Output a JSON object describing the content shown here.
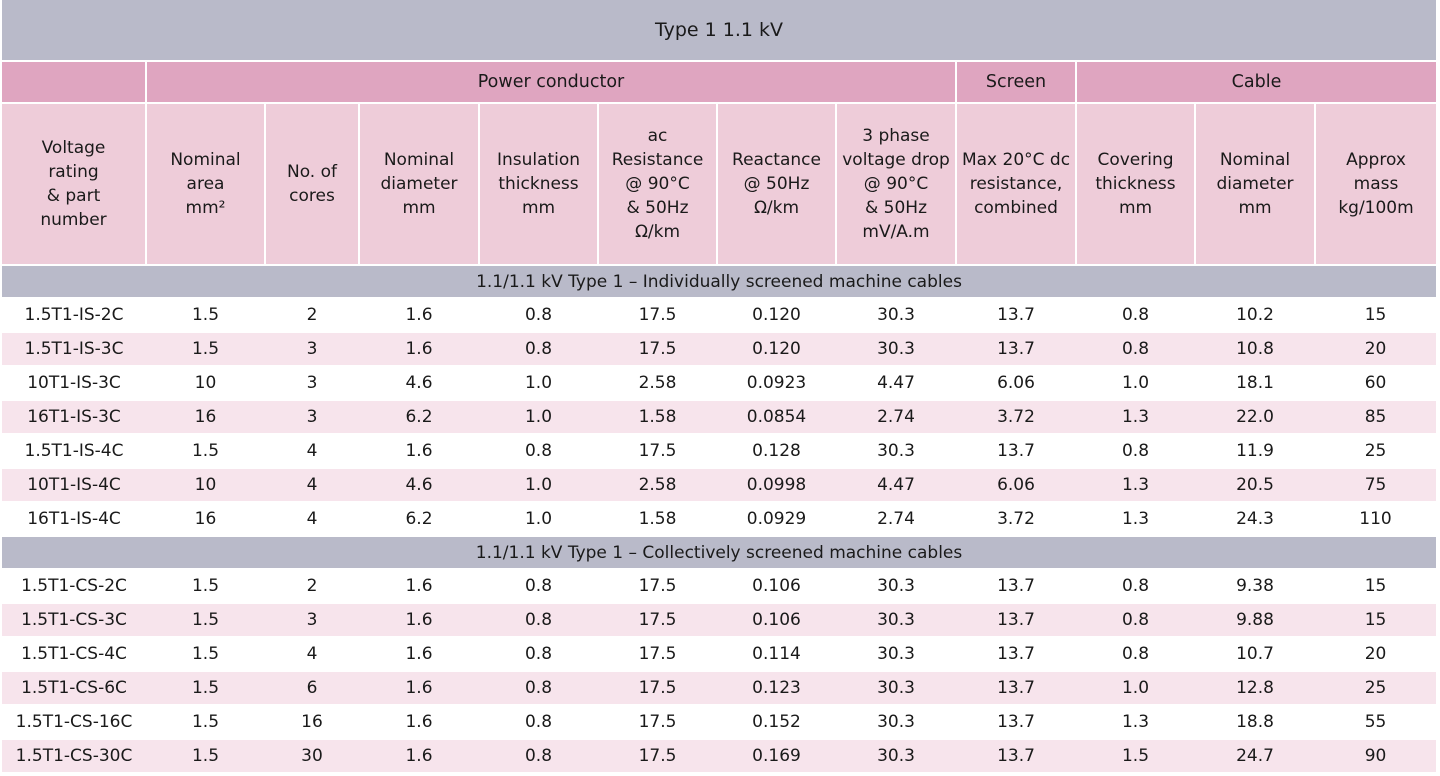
{
  "title": "Type 1  1.1 kV",
  "groups": {
    "power_conductor": "Power conductor",
    "screen": "Screen",
    "cable": "Cable"
  },
  "headers": [
    [
      "Voltage",
      "rating",
      "& part",
      "number"
    ],
    [
      "Nominal",
      "area",
      "mm²"
    ],
    [
      "No. of",
      "cores"
    ],
    [
      "Nominal",
      "diameter",
      "mm"
    ],
    [
      "Insulation",
      "thickness",
      "mm"
    ],
    [
      "ac",
      "Resistance",
      "@ 90°C",
      "& 50Hz",
      "Ω/km"
    ],
    [
      "Reactance",
      "@ 50Hz",
      "Ω/km"
    ],
    [
      "3 phase",
      "voltage drop",
      "@ 90°C",
      "& 50Hz",
      "mV/A.m"
    ],
    [
      "Max 20°C dc",
      "resistance,",
      "combined"
    ],
    [
      "Covering",
      "thickness",
      "mm"
    ],
    [
      "Nominal",
      "diameter",
      "mm"
    ],
    [
      "Approx",
      "mass",
      "kg/100m"
    ]
  ],
  "sections": [
    {
      "title": "1.1/1.1 kV  Type 1 – Individually screened machine cables",
      "rows": [
        [
          "1.5T1-IS-2C",
          "1.5",
          "2",
          "1.6",
          "0.8",
          "17.5",
          "0.120",
          "30.3",
          "13.7",
          "0.8",
          "10.2",
          "15"
        ],
        [
          "1.5T1-IS-3C",
          "1.5",
          "3",
          "1.6",
          "0.8",
          "17.5",
          "0.120",
          "30.3",
          "13.7",
          "0.8",
          "10.8",
          "20"
        ],
        [
          "10T1-IS-3C",
          "10",
          "3",
          "4.6",
          "1.0",
          "2.58",
          "0.0923",
          "4.47",
          "6.06",
          "1.0",
          "18.1",
          "60"
        ],
        [
          "16T1-IS-3C",
          "16",
          "3",
          "6.2",
          "1.0",
          "1.58",
          "0.0854",
          "2.74",
          "3.72",
          "1.3",
          "22.0",
          "85"
        ],
        [
          "1.5T1-IS-4C",
          "1.5",
          "4",
          "1.6",
          "0.8",
          "17.5",
          "0.128",
          "30.3",
          "13.7",
          "0.8",
          "11.9",
          "25"
        ],
        [
          "10T1-IS-4C",
          "10",
          "4",
          "4.6",
          "1.0",
          "2.58",
          "0.0998",
          "4.47",
          "6.06",
          "1.3",
          "20.5",
          "75"
        ],
        [
          "16T1-IS-4C",
          "16",
          "4",
          "6.2",
          "1.0",
          "1.58",
          "0.0929",
          "2.74",
          "3.72",
          "1.3",
          "24.3",
          "110"
        ]
      ]
    },
    {
      "title": "1.1/1.1 kV  Type 1 – Collectively screened machine cables",
      "rows": [
        [
          "1.5T1-CS-2C",
          "1.5",
          "2",
          "1.6",
          "0.8",
          "17.5",
          "0.106",
          "30.3",
          "13.7",
          "0.8",
          "9.38",
          "15"
        ],
        [
          "1.5T1-CS-3C",
          "1.5",
          "3",
          "1.6",
          "0.8",
          "17.5",
          "0.106",
          "30.3",
          "13.7",
          "0.8",
          "9.88",
          "15"
        ],
        [
          "1.5T1-CS-4C",
          "1.5",
          "4",
          "1.6",
          "0.8",
          "17.5",
          "0.114",
          "30.3",
          "13.7",
          "0.8",
          "10.7",
          "20"
        ],
        [
          "1.5T1-CS-6C",
          "1.5",
          "6",
          "1.6",
          "0.8",
          "17.5",
          "0.123",
          "30.3",
          "13.7",
          "1.0",
          "12.8",
          "25"
        ],
        [
          "1.5T1-CS-16C",
          "1.5",
          "16",
          "1.6",
          "0.8",
          "17.5",
          "0.152",
          "30.3",
          "13.7",
          "1.3",
          "18.8",
          "55"
        ],
        [
          "1.5T1-CS-30C",
          "1.5",
          "30",
          "1.6",
          "0.8",
          "17.5",
          "0.169",
          "30.3",
          "13.7",
          "1.5",
          "24.7",
          "90"
        ]
      ]
    }
  ]
}
